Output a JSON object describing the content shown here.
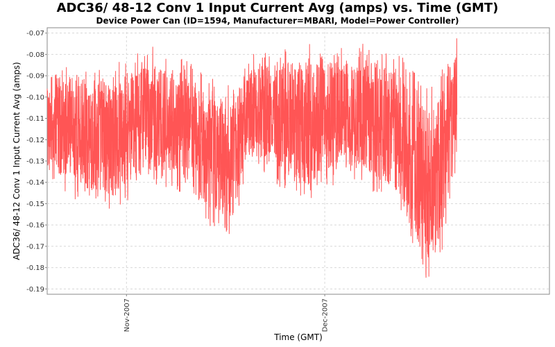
{
  "chart_data": {
    "type": "line",
    "title": "ADC36/ 48-12 Conv 1 Input Current Avg (amps) vs. Time (GMT)",
    "subtitle": "Device Power Can (ID=1594, Manufacturer=MBARI, Model=Power Controller)",
    "xlabel": "Time (GMT)",
    "ylabel": "ADC36/ 48-12 Conv 1 Input Current Avg (amps)",
    "x_ticks": [
      "Nov-2007",
      "Dec-2007"
    ],
    "y_ticks": [
      -0.07,
      -0.08,
      -0.09,
      -0.1,
      -0.11,
      -0.12,
      -0.13,
      -0.14,
      -0.15,
      -0.16,
      -0.17,
      -0.18,
      -0.19
    ],
    "y_tick_labels": [
      "-0.07",
      "-0.08",
      "-0.09",
      "-0.10",
      "-0.11",
      "-0.12",
      "-0.13",
      "-0.14",
      "-0.15",
      "-0.16",
      "-0.17",
      "-0.18",
      "-0.19"
    ],
    "xlim": [
      "2007-10-20",
      "2008-01-04"
    ],
    "ylim": [
      -0.1925,
      -0.0675
    ],
    "grid": true,
    "series": [
      {
        "color": "#ff5555",
        "data_range_x": [
          "2007-10-20",
          "2007-12-21"
        ],
        "band": {
          "x": [
            "2007-10-20",
            "2007-10-25",
            "2007-10-30",
            "2007-11-04",
            "2007-11-09",
            "2007-11-13",
            "2007-11-17",
            "2007-11-20",
            "2007-11-25",
            "2007-11-30",
            "2007-12-04",
            "2007-12-08",
            "2007-12-11",
            "2007-12-13",
            "2007-12-15",
            "2007-12-17",
            "2007-12-19",
            "2007-12-21"
          ],
          "upper": [
            -0.09,
            -0.08,
            -0.085,
            -0.075,
            -0.08,
            -0.09,
            -0.095,
            -0.08,
            -0.075,
            -0.075,
            -0.075,
            -0.075,
            -0.075,
            -0.08,
            -0.09,
            -0.095,
            -0.085,
            -0.072
          ],
          "lower": [
            -0.14,
            -0.15,
            -0.155,
            -0.14,
            -0.145,
            -0.16,
            -0.165,
            -0.13,
            -0.145,
            -0.15,
            -0.135,
            -0.145,
            -0.15,
            -0.165,
            -0.18,
            -0.19,
            -0.17,
            -0.135
          ]
        }
      }
    ]
  }
}
